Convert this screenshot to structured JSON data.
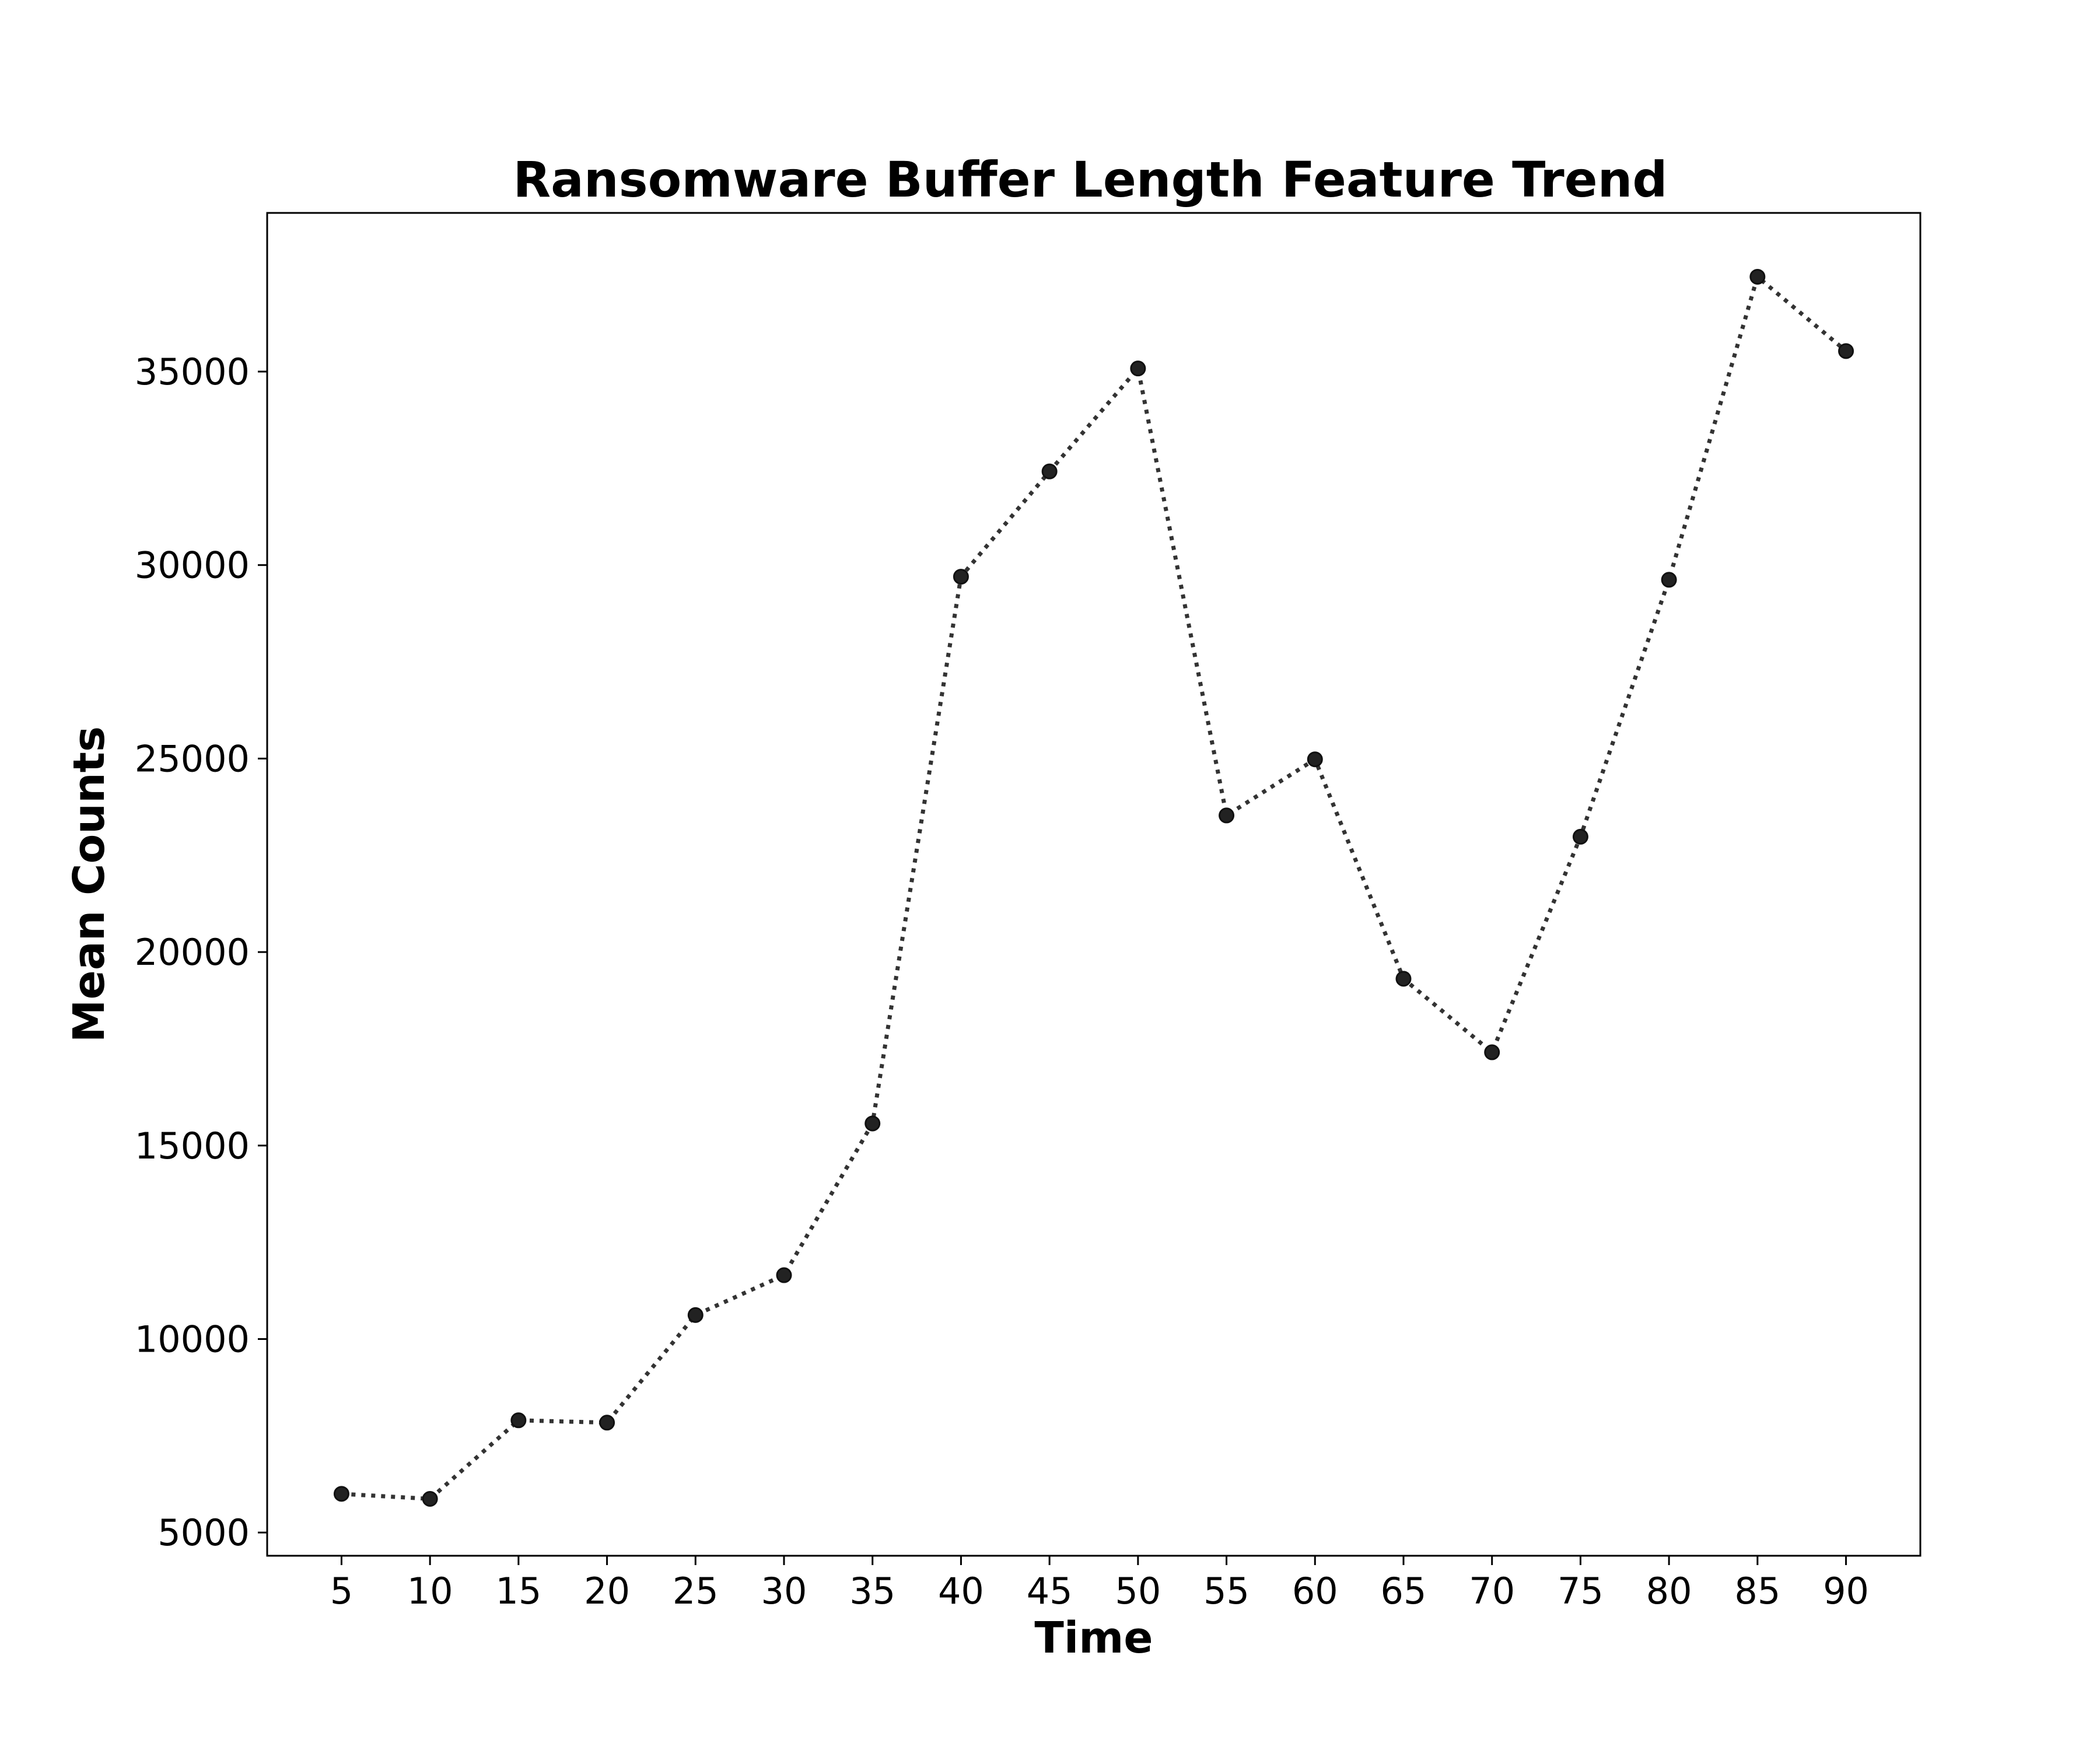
{
  "chart_data": {
    "type": "line",
    "title": "Ransomware Buffer Length Feature Trend",
    "xlabel": "Time",
    "ylabel": "Mean Counts",
    "x": [
      5,
      10,
      15,
      20,
      25,
      30,
      35,
      40,
      45,
      50,
      55,
      60,
      65,
      70,
      75,
      80,
      85,
      90
    ],
    "xticks": [
      "5",
      "10",
      "15",
      "20",
      "25",
      "30",
      "35",
      "40",
      "45",
      "50",
      "55",
      "60",
      "65",
      "70",
      "75",
      "80",
      "85",
      "90"
    ],
    "yticks": [
      "5000",
      "10000",
      "15000",
      "20000",
      "25000",
      "30000",
      "35000"
    ],
    "ylim": [
      4400,
      39100
    ],
    "xlim": [
      0.8,
      94.2
    ],
    "grid": false,
    "series": [
      {
        "values": [
          6000,
          5870,
          7900,
          7840,
          10620,
          11650,
          15570,
          29700,
          32420,
          35080,
          23530,
          24980,
          19310,
          17410,
          22980,
          29620,
          37450,
          35530
        ],
        "color": "#333333",
        "line_style": "dotted",
        "marker": "circle"
      }
    ]
  }
}
